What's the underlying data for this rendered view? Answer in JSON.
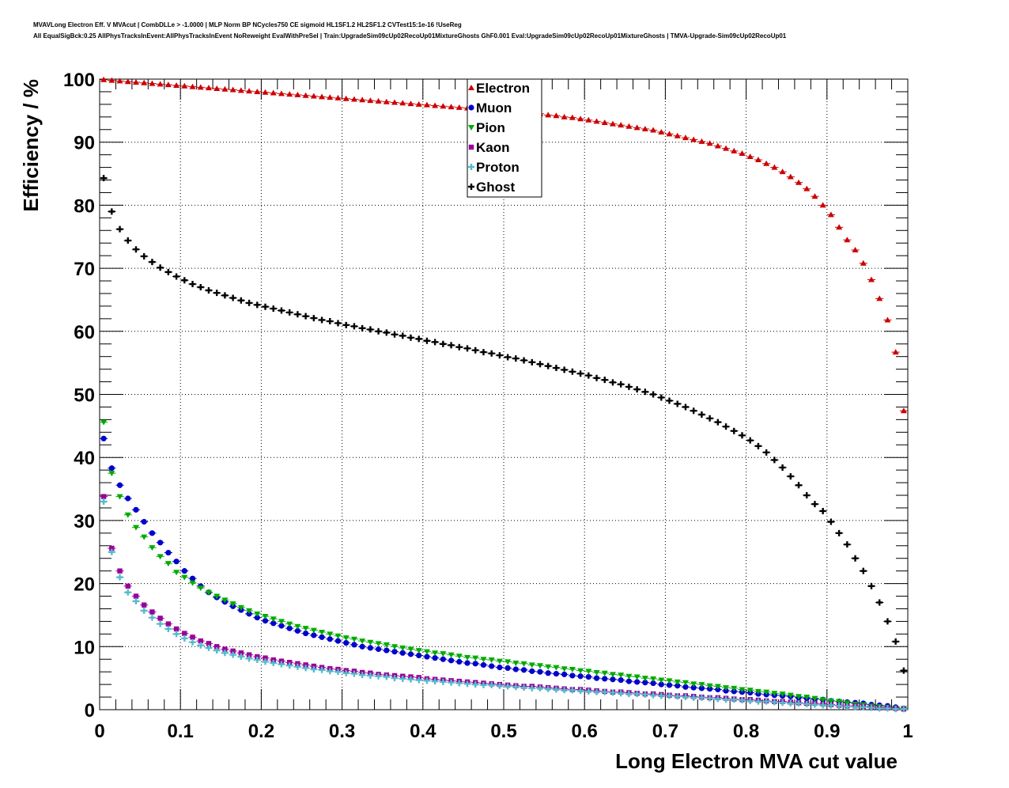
{
  "header": {
    "title_line1": "MVAVLong Electron Eff. V MVAcut | CombDLLe > -1.0000 | MLP Norm BP NCycles750 CE sigmoid HL1SF1.2 HL2SF1.2 CVTest15:1e-16 !UseReg",
    "title_line2": "All EqualSigBck:0.25 AllPhysTracksInEvent:AllPhysTracksInEvent NoReweight EvalWithPreSel | Train:UpgradeSim09cUp02RecoUp01MixtureGhosts GhF0.001 Eval:UpgradeSim09cUp02RecoUp01MixtureGhosts | TMVA-Upgrade-Sim09cUp02RecoUp01"
  },
  "chart_data": {
    "type": "scatter",
    "xlabel": "Long Electron MVA cut value",
    "ylabel": "Efficiency / %",
    "xlim": [
      0,
      1
    ],
    "ylim": [
      0,
      100
    ],
    "grid": true,
    "legend_position": "top-center",
    "x_ticks": [
      "0",
      "0.1",
      "0.2",
      "0.3",
      "0.4",
      "0.5",
      "0.6",
      "0.7",
      "0.8",
      "0.9",
      "1"
    ],
    "y_ticks": [
      "0",
      "10",
      "20",
      "30",
      "40",
      "50",
      "60",
      "70",
      "80",
      "90",
      "100"
    ],
    "x": [
      0.005,
      0.015,
      0.025,
      0.035,
      0.045,
      0.055,
      0.065,
      0.075,
      0.085,
      0.095,
      0.105,
      0.115,
      0.125,
      0.135,
      0.145,
      0.155,
      0.165,
      0.175,
      0.185,
      0.195,
      0.205,
      0.215,
      0.225,
      0.235,
      0.245,
      0.255,
      0.265,
      0.275,
      0.285,
      0.295,
      0.305,
      0.315,
      0.325,
      0.335,
      0.345,
      0.355,
      0.365,
      0.375,
      0.385,
      0.395,
      0.405,
      0.415,
      0.425,
      0.435,
      0.445,
      0.455,
      0.465,
      0.475,
      0.485,
      0.495,
      0.505,
      0.515,
      0.525,
      0.535,
      0.545,
      0.555,
      0.565,
      0.575,
      0.585,
      0.595,
      0.605,
      0.615,
      0.625,
      0.635,
      0.645,
      0.655,
      0.665,
      0.675,
      0.685,
      0.695,
      0.705,
      0.715,
      0.725,
      0.735,
      0.745,
      0.755,
      0.765,
      0.775,
      0.785,
      0.795,
      0.805,
      0.815,
      0.825,
      0.835,
      0.845,
      0.855,
      0.865,
      0.875,
      0.885,
      0.895,
      0.905,
      0.915,
      0.925,
      0.935,
      0.945,
      0.955,
      0.965,
      0.975,
      0.985,
      0.995
    ],
    "series": [
      {
        "name": "Electron",
        "color": "#cc0000",
        "marker": "triangle-up",
        "values": [
          99.9,
          99.8,
          99.7,
          99.6,
          99.5,
          99.4,
          99.3,
          99.2,
          99.1,
          99.0,
          98.9,
          98.8,
          98.7,
          98.6,
          98.5,
          98.4,
          98.3,
          98.2,
          98.1,
          98.0,
          97.9,
          97.8,
          97.7,
          97.6,
          97.5,
          97.4,
          97.3,
          97.2,
          97.1,
          97.0,
          96.9,
          96.8,
          96.7,
          96.6,
          96.5,
          96.4,
          96.3,
          96.2,
          96.1,
          96.0,
          95.9,
          95.8,
          95.7,
          95.6,
          95.5,
          95.4,
          95.3,
          95.2,
          95.1,
          95.0,
          94.9,
          94.8,
          94.7,
          94.6,
          94.5,
          94.3,
          94.2,
          94.0,
          93.9,
          93.7,
          93.5,
          93.3,
          93.1,
          92.9,
          92.7,
          92.5,
          92.3,
          92.1,
          91.9,
          91.6,
          91.3,
          91.0,
          90.7,
          90.4,
          90.1,
          89.8,
          89.4,
          89.0,
          88.6,
          88.2,
          87.7,
          87.2,
          86.6,
          86.0,
          85.3,
          84.5,
          83.6,
          82.6,
          81.4,
          80.0,
          78.5,
          76.5,
          74.5,
          72.9,
          70.8,
          68.2,
          65.2,
          61.8,
          56.7,
          47.4
        ]
      },
      {
        "name": "Muon",
        "color": "#0000cc",
        "marker": "circle",
        "values": [
          43.0,
          38.3,
          35.6,
          33.5,
          31.7,
          29.8,
          28.0,
          26.5,
          24.9,
          23.5,
          22.0,
          20.8,
          19.6,
          18.6,
          17.8,
          17.1,
          16.4,
          15.8,
          15.2,
          14.6,
          14.1,
          13.7,
          13.3,
          12.9,
          12.5,
          12.1,
          11.8,
          11.5,
          11.2,
          10.9,
          10.6,
          10.3,
          10.0,
          9.8,
          9.6,
          9.4,
          9.2,
          9.0,
          8.8,
          8.6,
          8.4,
          8.2,
          8.0,
          7.8,
          7.6,
          7.4,
          7.3,
          7.1,
          6.9,
          6.7,
          6.6,
          6.4,
          6.3,
          6.1,
          6.0,
          5.8,
          5.7,
          5.6,
          5.4,
          5.3,
          5.2,
          5.0,
          4.9,
          4.8,
          4.7,
          4.5,
          4.4,
          4.3,
          4.2,
          4.0,
          3.9,
          3.8,
          3.6,
          3.5,
          3.4,
          3.3,
          3.2,
          3.0,
          2.9,
          2.8,
          2.7,
          2.5,
          2.4,
          2.3,
          2.2,
          2.1,
          1.9,
          1.8,
          1.7,
          1.6,
          1.4,
          1.3,
          1.2,
          1.1,
          1.0,
          0.8,
          0.7,
          0.6,
          0.4,
          0.2
        ]
      },
      {
        "name": "Pion",
        "color": "#00aa00",
        "marker": "triangle-down",
        "values": [
          45.6,
          37.5,
          33.8,
          30.9,
          28.9,
          27.4,
          25.7,
          24.3,
          23.2,
          21.8,
          21.0,
          20.1,
          19.3,
          18.6,
          18.0,
          17.4,
          16.8,
          16.2,
          15.7,
          15.2,
          14.8,
          14.4,
          14.0,
          13.6,
          13.2,
          12.9,
          12.6,
          12.3,
          12.0,
          11.7,
          11.4,
          11.2,
          10.9,
          10.7,
          10.5,
          10.3,
          10.0,
          9.8,
          9.6,
          9.4,
          9.2,
          9.0,
          8.9,
          8.7,
          8.5,
          8.3,
          8.2,
          8.0,
          7.9,
          7.7,
          7.6,
          7.4,
          7.3,
          7.1,
          7.0,
          6.8,
          6.7,
          6.5,
          6.4,
          6.2,
          6.1,
          5.9,
          5.8,
          5.6,
          5.5,
          5.3,
          5.2,
          5.0,
          4.9,
          4.7,
          4.6,
          4.4,
          4.3,
          4.1,
          4.0,
          3.8,
          3.7,
          3.5,
          3.4,
          3.2,
          3.1,
          2.9,
          2.8,
          2.6,
          2.5,
          2.3,
          2.1,
          2.0,
          1.8,
          1.6,
          1.4,
          1.3,
          1.1,
          0.9,
          0.8,
          0.6,
          0.5,
          0.4,
          0.3,
          0.2
        ]
      },
      {
        "name": "Kaon",
        "color": "#990099",
        "marker": "square",
        "values": [
          33.8,
          25.6,
          22.0,
          19.6,
          18.0,
          16.6,
          15.5,
          14.5,
          13.6,
          12.8,
          12.1,
          11.5,
          10.9,
          10.5,
          10.0,
          9.6,
          9.3,
          9.0,
          8.7,
          8.4,
          8.2,
          7.9,
          7.7,
          7.5,
          7.3,
          7.1,
          6.9,
          6.7,
          6.5,
          6.4,
          6.2,
          6.1,
          5.9,
          5.8,
          5.6,
          5.5,
          5.4,
          5.3,
          5.2,
          5.1,
          4.9,
          4.8,
          4.7,
          4.6,
          4.5,
          4.4,
          4.3,
          4.2,
          4.1,
          4.0,
          3.9,
          3.8,
          3.7,
          3.7,
          3.6,
          3.5,
          3.4,
          3.3,
          3.2,
          3.2,
          3.1,
          3.0,
          2.9,
          2.8,
          2.8,
          2.7,
          2.6,
          2.5,
          2.5,
          2.4,
          2.3,
          2.2,
          2.2,
          2.1,
          2.0,
          1.9,
          1.9,
          1.8,
          1.7,
          1.6,
          1.6,
          1.5,
          1.4,
          1.3,
          1.3,
          1.2,
          1.1,
          1.0,
          1.0,
          0.9,
          0.8,
          0.7,
          0.6,
          0.6,
          0.5,
          0.4,
          0.3,
          0.3,
          0.2,
          0.1
        ]
      },
      {
        "name": "Proton",
        "color": "#55bbcc",
        "marker": "cross",
        "values": [
          33.0,
          25.0,
          21.0,
          18.6,
          17.2,
          15.7,
          14.6,
          13.6,
          12.8,
          12.0,
          11.3,
          10.7,
          10.2,
          9.8,
          9.4,
          9.0,
          8.7,
          8.4,
          8.1,
          7.9,
          7.6,
          7.4,
          7.2,
          7.0,
          6.8,
          6.6,
          6.4,
          6.3,
          6.1,
          6.0,
          5.8,
          5.7,
          5.5,
          5.4,
          5.3,
          5.2,
          5.0,
          4.9,
          4.8,
          4.7,
          4.6,
          4.5,
          4.4,
          4.3,
          4.2,
          4.1,
          4.0,
          3.9,
          3.9,
          3.8,
          3.7,
          3.6,
          3.5,
          3.4,
          3.4,
          3.3,
          3.2,
          3.1,
          3.1,
          3.0,
          2.9,
          2.8,
          2.8,
          2.7,
          2.6,
          2.5,
          2.5,
          2.4,
          2.3,
          2.2,
          2.2,
          2.1,
          2.0,
          1.9,
          1.9,
          1.8,
          1.7,
          1.6,
          1.6,
          1.5,
          1.4,
          1.3,
          1.3,
          1.2,
          1.1,
          1.0,
          1.0,
          0.9,
          0.8,
          0.7,
          0.7,
          0.6,
          0.5,
          0.4,
          0.4,
          0.3,
          0.2,
          0.2,
          0.1,
          0.1
        ]
      },
      {
        "name": "Ghost",
        "color": "#000000",
        "marker": "cross",
        "values": [
          84.3,
          79.0,
          76.2,
          74.4,
          73.0,
          71.9,
          71.0,
          70.1,
          69.4,
          68.7,
          68.1,
          67.5,
          67.0,
          66.5,
          66.1,
          65.7,
          65.3,
          64.9,
          64.5,
          64.2,
          63.9,
          63.6,
          63.3,
          63.0,
          62.7,
          62.4,
          62.1,
          61.8,
          61.6,
          61.3,
          61.0,
          60.8,
          60.5,
          60.3,
          60.0,
          59.8,
          59.5,
          59.3,
          59.0,
          58.8,
          58.5,
          58.3,
          58.0,
          57.8,
          57.5,
          57.3,
          57.0,
          56.7,
          56.5,
          56.2,
          55.9,
          55.7,
          55.4,
          55.1,
          54.8,
          54.5,
          54.2,
          53.9,
          53.6,
          53.3,
          53.0,
          52.6,
          52.3,
          51.9,
          51.6,
          51.2,
          50.8,
          50.4,
          50.0,
          49.5,
          49.0,
          48.5,
          48.0,
          47.4,
          46.8,
          46.2,
          45.6,
          44.9,
          44.2,
          43.5,
          42.7,
          41.8,
          40.8,
          39.6,
          38.4,
          37.0,
          35.6,
          34.0,
          32.6,
          31.5,
          29.8,
          28.0,
          26.2,
          24.0,
          22.0,
          19.6,
          17.0,
          14.0,
          10.8,
          6.2
        ]
      }
    ]
  }
}
